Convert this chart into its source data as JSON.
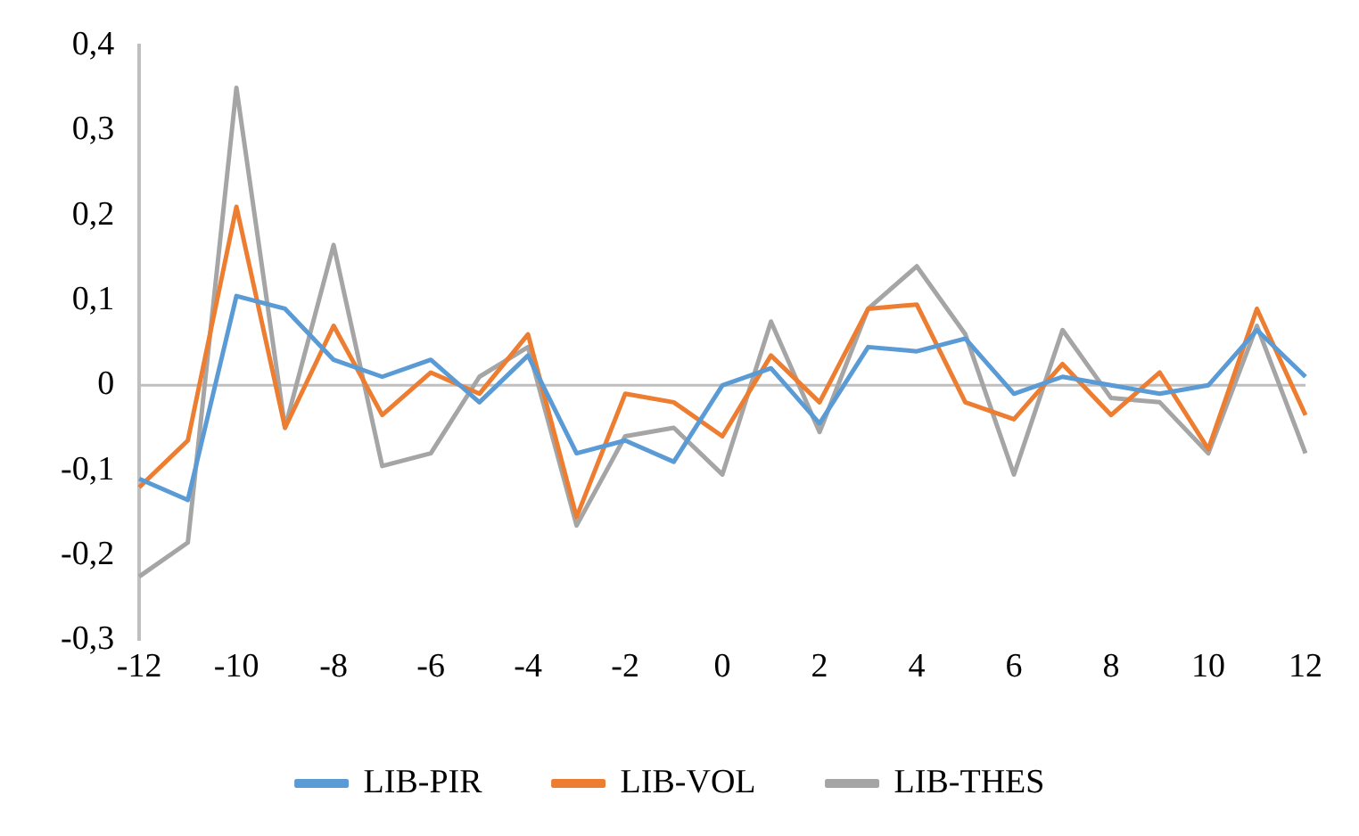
{
  "chart_data": {
    "type": "line",
    "categories": [
      "-12",
      null,
      "-10",
      null,
      "-8",
      null,
      "-6",
      null,
      "-4",
      null,
      "-2",
      null,
      "0",
      null,
      "2",
      null,
      "4",
      null,
      "6",
      null,
      "8",
      null,
      "10",
      null,
      "12"
    ],
    "series": [
      {
        "name": "LIB-PIR",
        "color": "#5b9bd5",
        "values": [
          -0.11,
          -0.135,
          0.105,
          0.09,
          0.03,
          0.01,
          0.03,
          -0.02,
          0.035,
          -0.08,
          -0.065,
          -0.09,
          0,
          0.02,
          -0.045,
          0.045,
          0.04,
          0.055,
          -0.01,
          0.01,
          0,
          -0.01,
          0,
          0.065,
          0.01
        ]
      },
      {
        "name": "LIB-VOL",
        "color": "#ed7d31",
        "values": [
          -0.12,
          -0.065,
          0.21,
          -0.05,
          0.07,
          -0.035,
          0.015,
          -0.01,
          0.06,
          -0.155,
          -0.01,
          -0.02,
          -0.06,
          0.035,
          -0.02,
          0.09,
          0.095,
          -0.02,
          -0.04,
          0.025,
          -0.035,
          0.015,
          -0.075,
          0.09,
          -0.035
        ]
      },
      {
        "name": "LIB-THES",
        "color": "#a5a5a5",
        "values": [
          -0.225,
          -0.185,
          0.35,
          -0.05,
          0.165,
          -0.095,
          -0.08,
          0.01,
          0.045,
          -0.165,
          -0.06,
          -0.05,
          -0.105,
          0.075,
          -0.055,
          0.09,
          0.14,
          0.06,
          -0.105,
          0.065,
          -0.015,
          -0.02,
          -0.08,
          0.07,
          -0.08
        ]
      }
    ],
    "ylim": [
      -0.3,
      0.4
    ],
    "yticks": [
      {
        "value": -0.3,
        "label": "-0,3"
      },
      {
        "value": -0.2,
        "label": "-0,2"
      },
      {
        "value": -0.1,
        "label": "-0,1"
      },
      {
        "value": 0,
        "label": "0"
      },
      {
        "value": 0.1,
        "label": "0,1"
      },
      {
        "value": 0.2,
        "label": "0,2"
      },
      {
        "value": 0.3,
        "label": "0,3"
      },
      {
        "value": 0.4,
        "label": "0,4"
      }
    ],
    "ref_lines": [
      {
        "axis": "y",
        "value": 0,
        "color": "#bfbfbf"
      }
    ],
    "grid": false,
    "legend": "bottom",
    "marker": "none",
    "line_style": "solid"
  }
}
